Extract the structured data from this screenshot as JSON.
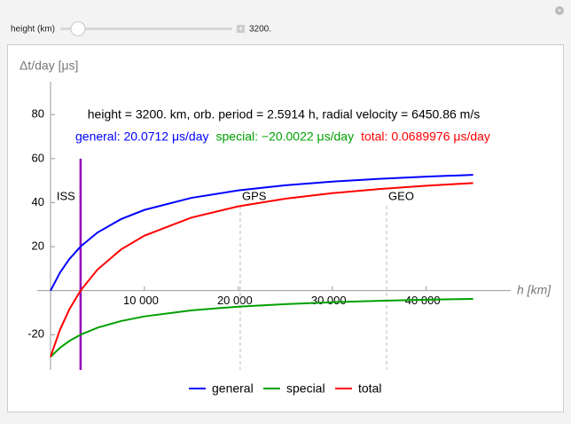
{
  "control": {
    "label": "height (km)",
    "value": "3200."
  },
  "chart_data": {
    "type": "line",
    "title": "height = 3200. km, orb. period = 2.5914 h, radial velocity = 6450.86 m/s",
    "subtitle": [
      {
        "text": "general: 20.0712 μs/day",
        "color": "#0000ff"
      },
      {
        "text": "special: −20.0022 μs/day",
        "color": "#00a000"
      },
      {
        "text": "total: 0.0689976 μs/day",
        "color": "#ff0000"
      }
    ],
    "y_label": "Δt/day [μs]",
    "x_label": "h [km]",
    "x": [
      0,
      1000,
      2000,
      3200,
      5000,
      7500,
      10000,
      15000,
      20000,
      25000,
      30000,
      35000,
      40000,
      45000
    ],
    "series": [
      {
        "name": "general",
        "color": "#0000ff",
        "values": [
          0,
          8.15,
          14.36,
          20.07,
          26.42,
          32.49,
          36.7,
          42.17,
          45.57,
          47.88,
          49.56,
          50.83,
          51.83,
          52.63
        ]
      },
      {
        "name": "special",
        "color": "#00a000",
        "values": [
          -30.04,
          -25.97,
          -22.86,
          -20.0,
          -16.83,
          -13.8,
          -11.69,
          -8.96,
          -7.26,
          -6.1,
          -5.26,
          -4.63,
          -4.13,
          -3.73
        ]
      },
      {
        "name": "total",
        "color": "#ff0000",
        "values": [
          -30.04,
          -17.82,
          -8.5,
          0.07,
          9.59,
          18.69,
          25.01,
          33.21,
          38.31,
          41.78,
          44.3,
          46.2,
          47.7,
          48.9
        ]
      }
    ],
    "markers": [
      {
        "label": "ISS",
        "x": 3200,
        "color": "#9400b8"
      },
      {
        "label": "GPS",
        "x": 20200,
        "color": "#bbbbbb"
      },
      {
        "label": "GEO",
        "x": 35786,
        "color": "#bbbbbb"
      }
    ],
    "xlim": [
      0,
      49000
    ],
    "ylim": [
      -36,
      95
    ],
    "xticks": [
      {
        "value": 10000,
        "label": "10 000"
      },
      {
        "value": 20000,
        "label": "20 000"
      },
      {
        "value": 30000,
        "label": "30 000"
      },
      {
        "value": 40000,
        "label": "40 000"
      }
    ],
    "yticks": [
      -20,
      20,
      40,
      60,
      80
    ]
  }
}
